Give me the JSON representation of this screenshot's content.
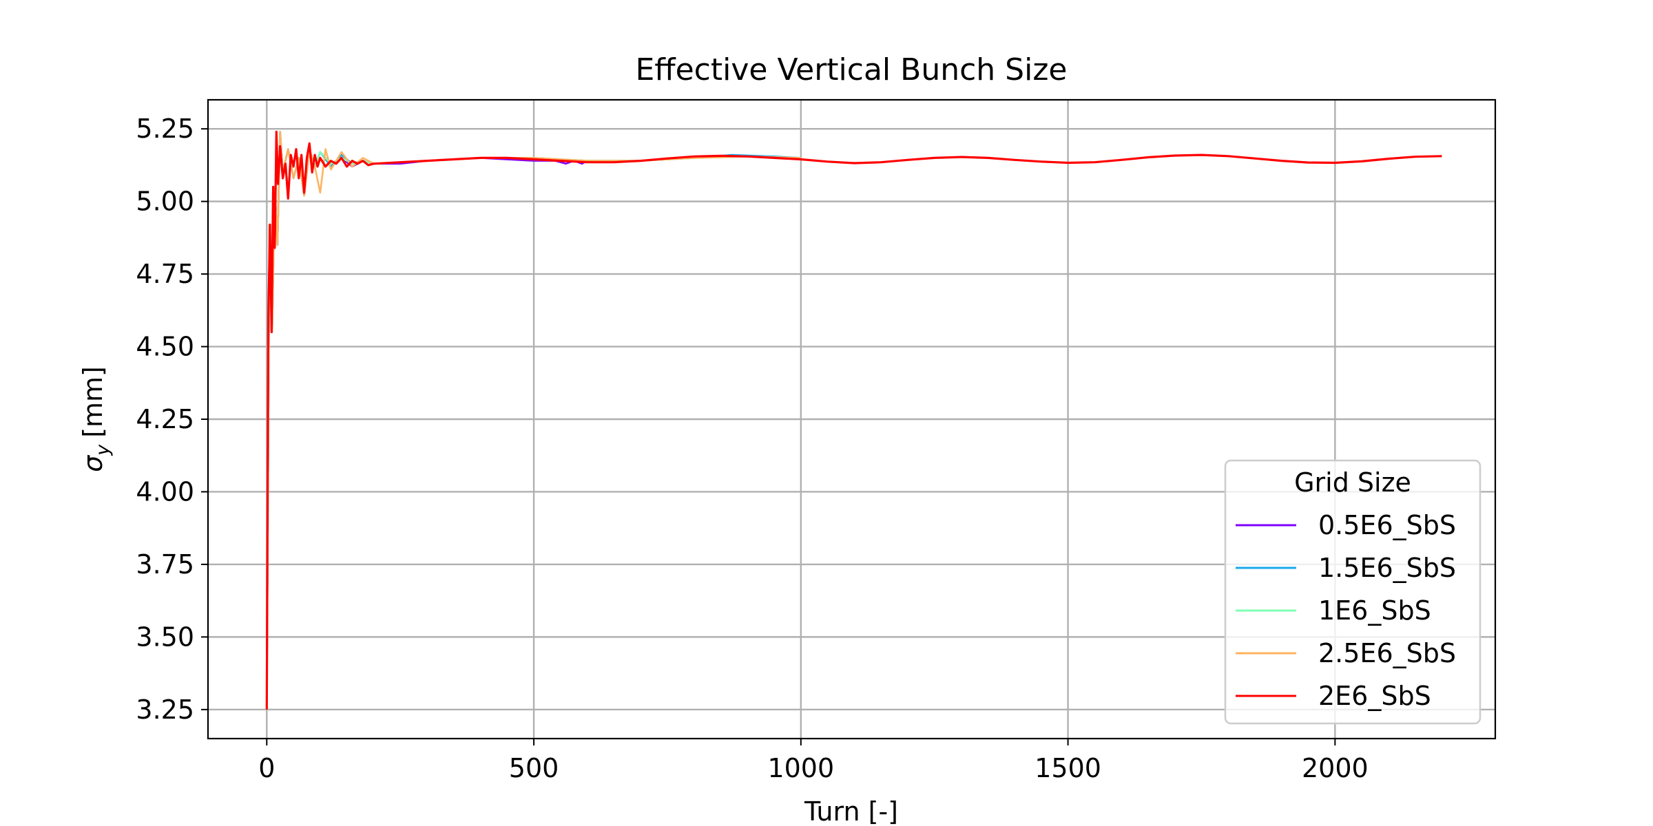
{
  "chart_data": {
    "type": "line",
    "title": "Effective Vertical Bunch Size",
    "xlabel": "Turn [-]",
    "ylabel_main": "σ",
    "ylabel_sub": "y",
    "ylabel_unit": "[mm]",
    "xlim": [
      -110,
      2300
    ],
    "ylim": [
      3.15,
      5.35
    ],
    "xticks": [
      0,
      500,
      1000,
      1500,
      2000
    ],
    "yticks": [
      3.25,
      3.5,
      3.75,
      4.0,
      4.25,
      4.5,
      4.75,
      5.0,
      5.25
    ],
    "ytick_labels": [
      "3.25",
      "3.50",
      "3.75",
      "4.00",
      "4.25",
      "4.50",
      "4.75",
      "5.00",
      "5.25"
    ],
    "grid": true,
    "legend": {
      "title": "Grid Size",
      "position": "bottom-right"
    },
    "series": [
      {
        "name": "0.5E6_SbS",
        "color": "#8000ff",
        "x": [
          0,
          5,
          10,
          15,
          20,
          25,
          30,
          40,
          50,
          60,
          70,
          80,
          90,
          100,
          120,
          140,
          160,
          180,
          200,
          250,
          300,
          400,
          500,
          540,
          560,
          575,
          590,
          600
        ],
        "y": [
          3.25,
          4.92,
          4.55,
          5.05,
          4.85,
          5.24,
          5.1,
          5.18,
          5.08,
          5.15,
          5.02,
          5.18,
          5.12,
          5.17,
          5.13,
          5.15,
          5.12,
          5.14,
          5.13,
          5.13,
          5.14,
          5.15,
          5.14,
          5.14,
          5.13,
          5.14,
          5.13,
          5.14
        ]
      },
      {
        "name": "1.5E6_SbS",
        "color": "#1aa9ec",
        "x": [
          0,
          5,
          10,
          15,
          20,
          25,
          30,
          40,
          50,
          60,
          70,
          80,
          90,
          100,
          120,
          140,
          160,
          180,
          200,
          300,
          400,
          500,
          600,
          700,
          800,
          870,
          950,
          1000
        ],
        "y": [
          3.25,
          4.92,
          4.55,
          5.05,
          4.85,
          5.24,
          5.1,
          5.18,
          5.08,
          5.15,
          5.02,
          5.18,
          5.12,
          5.17,
          5.12,
          5.16,
          5.13,
          5.14,
          5.13,
          5.14,
          5.15,
          5.15,
          5.14,
          5.14,
          5.15,
          5.16,
          5.155,
          5.15
        ]
      },
      {
        "name": "1E6_SbS",
        "color": "#80ffb4",
        "x": [
          0,
          5,
          10,
          15,
          20,
          25,
          30,
          40,
          50,
          60,
          70,
          80,
          90,
          100,
          120,
          140,
          160,
          180,
          200,
          300,
          400,
          500,
          600,
          700,
          800,
          900,
          1000
        ],
        "y": [
          3.25,
          4.92,
          4.55,
          5.05,
          4.85,
          5.24,
          5.1,
          5.18,
          5.08,
          5.15,
          5.02,
          5.18,
          5.12,
          5.17,
          5.13,
          5.15,
          5.13,
          5.14,
          5.13,
          5.14,
          5.15,
          5.15,
          5.14,
          5.14,
          5.15,
          5.155,
          5.15
        ]
      },
      {
        "name": "2.5E6_SbS",
        "color": "#ffb360",
        "x": [
          0,
          5,
          10,
          15,
          20,
          25,
          30,
          40,
          50,
          60,
          70,
          80,
          90,
          100,
          110,
          120,
          140,
          160,
          180,
          200,
          300,
          400,
          500,
          600,
          700,
          800,
          900,
          1000
        ],
        "y": [
          3.25,
          4.92,
          4.55,
          5.05,
          4.85,
          5.24,
          5.1,
          5.18,
          5.08,
          5.15,
          5.02,
          5.18,
          5.12,
          5.03,
          5.18,
          5.11,
          5.17,
          5.12,
          5.15,
          5.13,
          5.14,
          5.15,
          5.15,
          5.14,
          5.14,
          5.15,
          5.155,
          5.15
        ]
      },
      {
        "name": "2E6_SbS",
        "color": "#ff0000",
        "x": [
          0,
          3,
          6,
          9,
          12,
          15,
          18,
          21,
          25,
          30,
          35,
          40,
          45,
          50,
          55,
          60,
          65,
          70,
          75,
          80,
          85,
          90,
          95,
          100,
          110,
          120,
          130,
          140,
          150,
          160,
          170,
          180,
          190,
          200,
          250,
          300,
          350,
          400,
          450,
          500,
          550,
          600,
          650,
          700,
          750,
          800,
          850,
          900,
          950,
          1000,
          1050,
          1100,
          1150,
          1200,
          1250,
          1300,
          1350,
          1400,
          1450,
          1500,
          1550,
          1600,
          1650,
          1700,
          1750,
          1800,
          1850,
          1900,
          1950,
          2000,
          2050,
          2100,
          2150,
          2200
        ],
        "y": [
          3.25,
          4.6,
          4.92,
          4.55,
          5.05,
          4.84,
          5.24,
          5.06,
          5.19,
          5.08,
          5.13,
          5.01,
          5.16,
          5.12,
          5.18,
          5.08,
          5.16,
          5.03,
          5.15,
          5.2,
          5.1,
          5.16,
          5.12,
          5.15,
          5.12,
          5.14,
          5.13,
          5.15,
          5.12,
          5.14,
          5.13,
          5.14,
          5.125,
          5.13,
          5.135,
          5.14,
          5.145,
          5.15,
          5.15,
          5.145,
          5.14,
          5.135,
          5.135,
          5.14,
          5.148,
          5.155,
          5.157,
          5.155,
          5.15,
          5.145,
          5.137,
          5.132,
          5.135,
          5.143,
          5.15,
          5.153,
          5.15,
          5.143,
          5.137,
          5.133,
          5.135,
          5.143,
          5.152,
          5.158,
          5.16,
          5.156,
          5.148,
          5.14,
          5.134,
          5.133,
          5.138,
          5.147,
          5.154,
          5.156
        ]
      }
    ]
  }
}
